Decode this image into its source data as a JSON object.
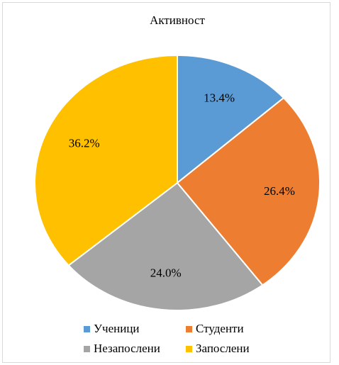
{
  "chart_data": {
    "type": "pie",
    "title": "Активност",
    "categories": [
      "Ученици",
      "Студенти",
      "Незапослени",
      "Запослени"
    ],
    "values": [
      13.4,
      26.4,
      24.0,
      36.2
    ],
    "value_labels": [
      "13.4%",
      "26.4%",
      "24.0%",
      "36.2%"
    ],
    "colors": [
      "#5b9bd5",
      "#ed7d31",
      "#a5a5a5",
      "#ffc000"
    ],
    "legend": "bottom"
  }
}
